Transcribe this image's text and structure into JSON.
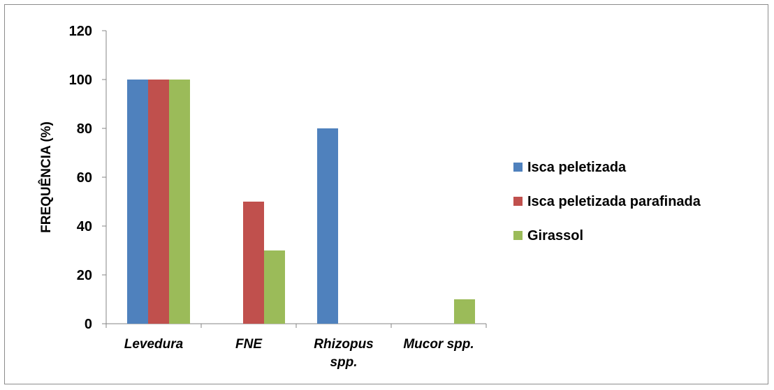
{
  "chart_data": {
    "type": "bar",
    "categories": [
      {
        "lines": [
          "Levedura"
        ]
      },
      {
        "lines": [
          "FNE"
        ]
      },
      {
        "lines": [
          "Rhizopus",
          "spp."
        ]
      },
      {
        "lines": [
          "Mucor spp."
        ]
      }
    ],
    "series": [
      {
        "name": "Isca peletizada",
        "color": "#4f81bd",
        "values": [
          100,
          0,
          80,
          0
        ]
      },
      {
        "name": "Isca peletizada parafinada",
        "color": "#c0504d",
        "values": [
          100,
          50,
          0,
          0
        ]
      },
      {
        "name": "Girassol",
        "color": "#9bbb59",
        "values": [
          100,
          30,
          0,
          10
        ]
      }
    ],
    "ylabel": "FREQUÊNCIA (%)",
    "xlabel": "",
    "title": "",
    "ylim": [
      0,
      120
    ],
    "yticks": [
      0,
      20,
      40,
      60,
      80,
      100,
      120
    ],
    "grid": false,
    "legend_position": "right"
  }
}
